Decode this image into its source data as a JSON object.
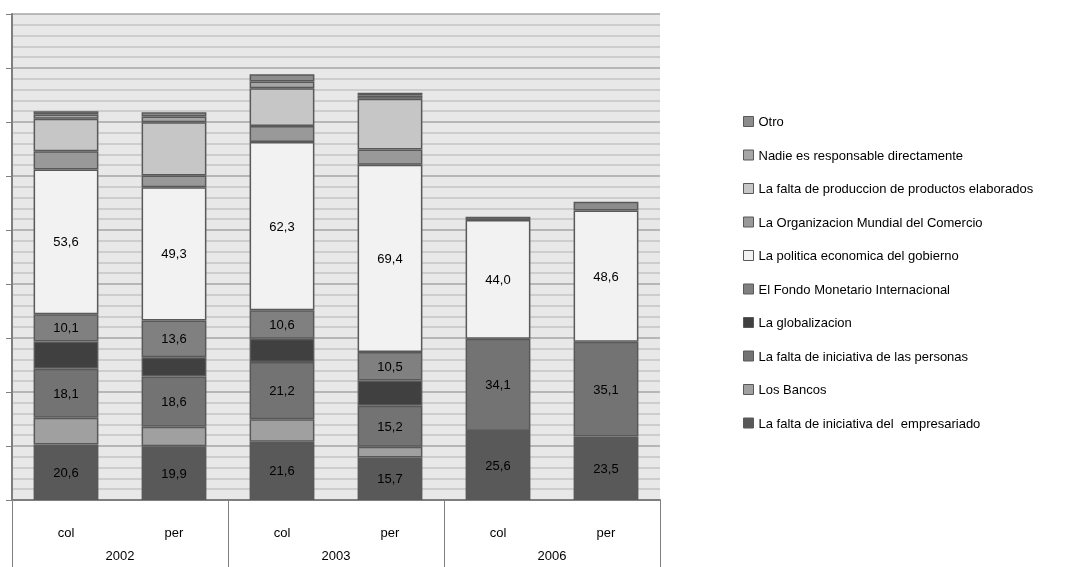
{
  "chart_data": {
    "type": "bar",
    "stacked": true,
    "categories": [
      "col",
      "per",
      "col",
      "per",
      "col",
      "per"
    ],
    "annotations": [
      "2002",
      "2003",
      "2006"
    ],
    "ylim": [
      0,
      180
    ],
    "yticks": [
      {
        "value": 0,
        "label": null
      },
      {
        "value": 20,
        "label": null
      },
      {
        "value": 40,
        "label": null
      },
      {
        "value": 60,
        "label": null
      },
      {
        "value": 80,
        "label": null
      },
      {
        "value": 100,
        "label": null
      },
      {
        "value": 120,
        "label": null
      },
      {
        "value": 140,
        "label": null
      },
      {
        "value": 160,
        "label": null
      },
      {
        "value": 180,
        "label": null
      }
    ],
    "grid": "y",
    "legend": "right",
    "series": [
      {
        "name": "La falta de iniciativa del  empresariado",
        "color": "#595959",
        "values": [
          20.6,
          19.9,
          21.6,
          15.7,
          25.6,
          23.5
        ],
        "value_labels": [
          "20,6",
          "19,9",
          "21,6",
          "15,7",
          "25,6",
          "23,5"
        ]
      },
      {
        "name": "Los Bancos",
        "color": "#a0a0a0",
        "values": [
          9.9,
          7.2,
          8.3,
          4.0,
          null,
          null
        ]
      },
      {
        "name": "La falta de iniciativa de las personas",
        "color": "#737373",
        "values": [
          18.1,
          18.6,
          21.2,
          15.2,
          34.1,
          35.1
        ],
        "value_labels": [
          "18,1",
          "18,6",
          "21,2",
          "15,2",
          "34,1",
          "35,1"
        ]
      },
      {
        "name": "La globalizacion",
        "color": "#404040",
        "values": [
          10.1,
          7.2,
          8.6,
          9.4,
          null,
          null
        ]
      },
      {
        "name": "El Fondo Monetario Internacional",
        "color": "#808080",
        "values": [
          10.1,
          13.6,
          10.6,
          10.5,
          null,
          null
        ],
        "value_labels": [
          "10,1",
          "13,6",
          "10,6",
          "10,5",
          null,
          null
        ]
      },
      {
        "name": "La politica economica del gobierno",
        "color": "#f2f2f2",
        "values": [
          53.6,
          49.3,
          62.3,
          69.4,
          44.0,
          48.6
        ],
        "value_labels": [
          "53,6",
          "49,3",
          "62,3",
          "69,4",
          "44,0",
          "48,6"
        ]
      },
      {
        "name": "La Organizacion Mundial del Comercio",
        "color": "#999999",
        "values": [
          6.8,
          4.4,
          5.9,
          5.6,
          null,
          null
        ]
      },
      {
        "name": "La falta de produccion de productos elaborados",
        "color": "#c6c6c6",
        "values": [
          12.0,
          19.7,
          14.0,
          18.8,
          null,
          null
        ]
      },
      {
        "name": "Nadie es responsable directamente",
        "color": "#a6a6a6",
        "values": [
          1.6,
          2.1,
          2.5,
          1.2,
          null,
          null
        ]
      },
      {
        "name": "Otro",
        "color": "#8c8c8c",
        "values": [
          1.2,
          1.6,
          2.7,
          1.0,
          1.2,
          3.3
        ]
      }
    ]
  }
}
